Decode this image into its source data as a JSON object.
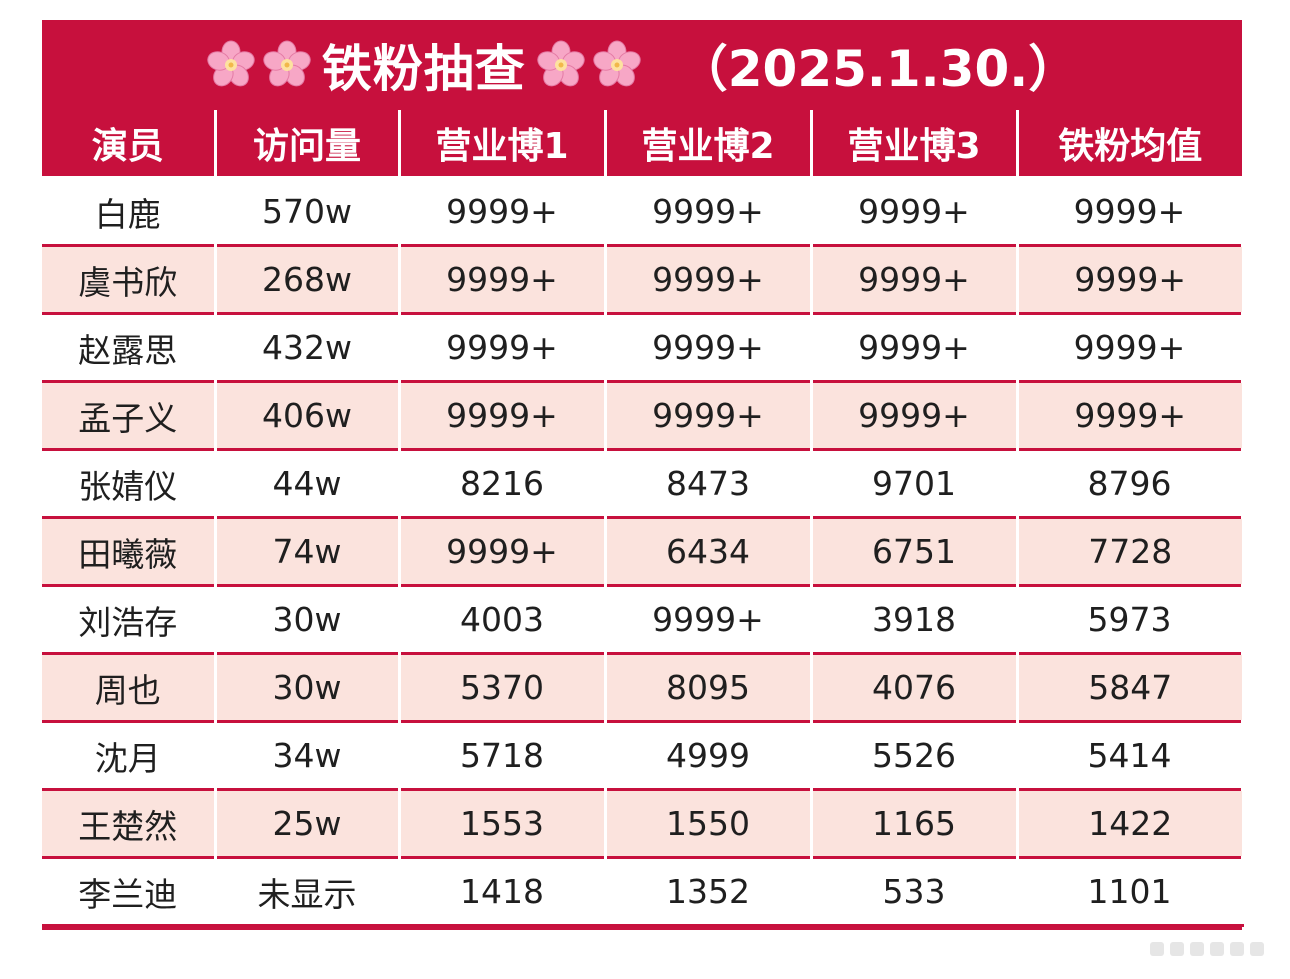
{
  "title": {
    "text": "铁粉抽查",
    "date": "（2025.1.30.）",
    "flower_icon": "cherry-blossom-emoji"
  },
  "headers": [
    "演员",
    "访问量",
    "营业博1",
    "营业博2",
    "营业博3",
    "铁粉均值"
  ],
  "rows": [
    [
      "白鹿",
      "570w",
      "9999+",
      "9999+",
      "9999+",
      "9999+"
    ],
    [
      "虞书欣",
      "268w",
      "9999+",
      "9999+",
      "9999+",
      "9999+"
    ],
    [
      "赵露思",
      "432w",
      "9999+",
      "9999+",
      "9999+",
      "9999+"
    ],
    [
      "孟子义",
      "406w",
      "9999+",
      "9999+",
      "9999+",
      "9999+"
    ],
    [
      "张婧仪",
      "44w",
      "8216",
      "8473",
      "9701",
      "8796"
    ],
    [
      "田曦薇",
      "74w",
      "9999+",
      "6434",
      "6751",
      "7728"
    ],
    [
      "刘浩存",
      "30w",
      "4003",
      "9999+",
      "3918",
      "5973"
    ],
    [
      "周也",
      "30w",
      "5370",
      "8095",
      "4076",
      "5847"
    ],
    [
      "沈月",
      "34w",
      "5718",
      "4999",
      "5526",
      "5414"
    ],
    [
      "王楚然",
      "25w",
      "1553",
      "1550",
      "1165",
      "1422"
    ],
    [
      "李兰迪",
      "未显示",
      "1418",
      "1352",
      "533",
      "1101"
    ]
  ],
  "colors": {
    "header_red": "#c7103d",
    "row_pink": "#fbe3dd",
    "row_white": "#ffffff"
  }
}
